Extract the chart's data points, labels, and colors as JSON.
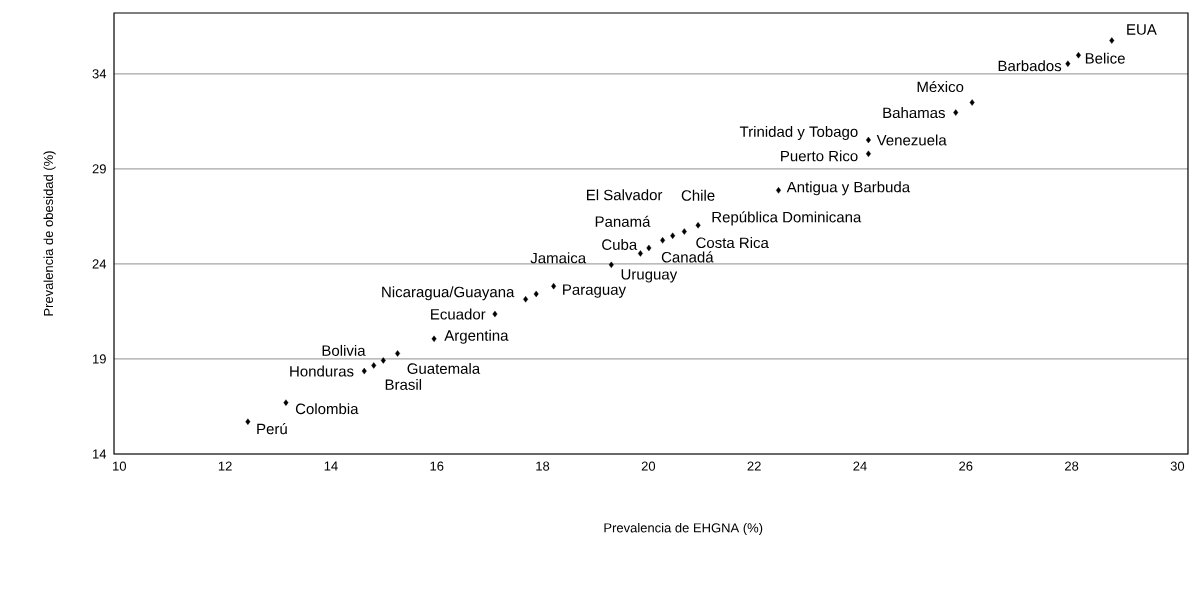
{
  "chart_data": {
    "type": "scatter",
    "xlabel": "Prevalencia de EHGNA (%)",
    "ylabel": "Prevalencia de obesidad (%)",
    "x": [
      12.43,
      13.15,
      14.63,
      14.81,
      14.99,
      15.26,
      15.95,
      17.1,
      17.68,
      17.88,
      18.21,
      19.3,
      19.85,
      20.01,
      20.27,
      20.46,
      20.68,
      20.94,
      22.46,
      24.16,
      24.16,
      25.81,
      26.12,
      27.93,
      28.13,
      28.76
    ],
    "values": [
      15.7,
      16.7,
      18.36,
      18.66,
      18.92,
      19.29,
      20.06,
      21.36,
      22.14,
      22.42,
      22.83,
      23.95,
      24.55,
      24.84,
      25.24,
      25.48,
      25.7,
      26.03,
      27.87,
      29.79,
      30.52,
      31.96,
      32.49,
      34.53,
      34.98,
      35.75
    ],
    "color": "#000000",
    "marker": "diamond",
    "grid": "y",
    "xlim": [
      9.9,
      30.2
    ],
    "ylim": [
      14,
      37.2
    ],
    "xticks": [
      10,
      12,
      14,
      16,
      18,
      20,
      22,
      24,
      26,
      28,
      30
    ],
    "yticks": [
      14,
      19,
      24,
      29,
      34
    ],
    "annotations": [
      {
        "text": "EUA",
        "x": 28.76,
        "y": 35.75
      },
      {
        "text": "Belice",
        "x": 28.13,
        "y": 34.98
      },
      {
        "text": "Barbados",
        "x": 27.93,
        "y": 34.53
      },
      {
        "text": "México",
        "x": 26.12,
        "y": 32.49
      },
      {
        "text": "Bahamas",
        "x": 25.81,
        "y": 31.96
      },
      {
        "text": "Trinidad y Tobago",
        "x": 24.16,
        "y": 30.52
      },
      {
        "text": "Venezuela",
        "x": 24.16,
        "y": 30.52
      },
      {
        "text": "Puerto Rico",
        "x": 24.16,
        "y": 29.79
      },
      {
        "text": "Antigua y Barbuda",
        "x": 22.46,
        "y": 27.87
      },
      {
        "text": "Jamaica",
        "x": 19.3,
        "y": 23.95
      },
      {
        "text": "Uruguay",
        "x": 19.3,
        "y": 23.95
      },
      {
        "text": "Cuba",
        "x": 19.85,
        "y": 24.55
      },
      {
        "text": "Canadá",
        "x": 20.01,
        "y": 24.84
      },
      {
        "text": "Panamá",
        "x": 20.27,
        "y": 25.24
      },
      {
        "text": "El Salvador",
        "x": 20.46,
        "y": 25.48
      },
      {
        "text": "Costa Rica",
        "x": 20.68,
        "y": 25.7
      },
      {
        "text": "Chile",
        "x": 20.94,
        "y": 26.03
      },
      {
        "text": "República Dominicana",
        "x": 20.94,
        "y": 26.03
      },
      {
        "text": "Paraguay",
        "x": 18.21,
        "y": 22.83
      },
      {
        "text": "Nicaragua/Guayana",
        "x": 17.68,
        "y": 22.14
      },
      {
        "text": "Ecuador",
        "x": 17.1,
        "y": 21.36
      },
      {
        "text": "Argentina",
        "x": 15.95,
        "y": 20.06
      },
      {
        "text": "Bolivia",
        "x": 14.81,
        "y": 18.66
      },
      {
        "text": "Honduras",
        "x": 14.63,
        "y": 18.36
      },
      {
        "text": "Brasil",
        "x": 14.99,
        "y": 18.92
      },
      {
        "text": "Guatemala",
        "x": 15.26,
        "y": 19.29
      },
      {
        "text": "Colombia",
        "x": 13.15,
        "y": 16.7
      },
      {
        "text": "Perú",
        "x": 12.43,
        "y": 15.7
      }
    ]
  }
}
